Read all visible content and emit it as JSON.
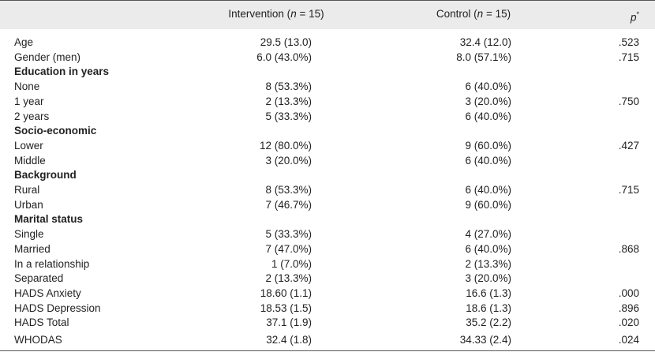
{
  "table": {
    "header": {
      "intervention": [
        "Intervention (",
        "n",
        " = 15)"
      ],
      "control": [
        "Control (",
        "n",
        " = 15)"
      ],
      "p": {
        "text": "p",
        "mark": "*"
      }
    },
    "rows": [
      {
        "label": "Age",
        "intervention": "29.5 (13.0)",
        "control": "32.4 (12.0)",
        "p": ".523"
      },
      {
        "label": "Gender (men)",
        "intervention": "6.0 (43.0%)",
        "control": "8.0 (57.1%)",
        "p": ".715"
      },
      {
        "heading": "Education in years"
      },
      {
        "label": "None",
        "intervention": "8 (53.3%)",
        "control": "6 (40.0%)"
      },
      {
        "label": "1 year",
        "intervention": "2 (13.3%)",
        "control": "3 (20.0%)",
        "p": ".750"
      },
      {
        "label": "2 years",
        "intervention": "5 (33.3%)",
        "control": "6 (40.0%)"
      },
      {
        "heading": "Socio-economic"
      },
      {
        "label": "Lower",
        "intervention": "12 (80.0%)",
        "control": "9 (60.0%)",
        "p": ".427"
      },
      {
        "label": "Middle",
        "intervention": "3 (20.0%)",
        "control": "6 (40.0%)"
      },
      {
        "heading": "Background"
      },
      {
        "label": "Rural",
        "intervention": "8 (53.3%)",
        "control": "6 (40.0%)",
        "p": ".715"
      },
      {
        "label": "Urban",
        "intervention": "7 (46.7%)",
        "control": "9 (60.0%)"
      },
      {
        "heading": "Marital status"
      },
      {
        "label": "Single",
        "intervention": "5 (33.3%)",
        "control": "4 (27.0%)"
      },
      {
        "label": "Married",
        "intervention": "7 (47.0%)",
        "control": "6 (40.0%)",
        "p": ".868"
      },
      {
        "label": "In a relationship",
        "intervention": "1 (7.0%)",
        "control": "2 (13.3%)"
      },
      {
        "label": "Separated",
        "intervention": "2 (13.3%)",
        "control": "3 (20.0%)"
      },
      {
        "label": "HADS Anxiety",
        "intervention": "18.60 (1.1)",
        "control": "16.6 (1.3)",
        "p": ".000"
      },
      {
        "label": "HADS Depression",
        "intervention": "18.53 (1.5)",
        "control": "18.6 (1.3)",
        "p": ".896"
      },
      {
        "label": "HADS Total",
        "intervention": "37.1 (1.9)",
        "control": "35.2 (2.2)",
        "p": ".020"
      },
      {
        "label": "WHODAS",
        "intervention": "32.4 (1.8)",
        "control": "34.33 (2.4)",
        "p": ".024"
      }
    ]
  }
}
